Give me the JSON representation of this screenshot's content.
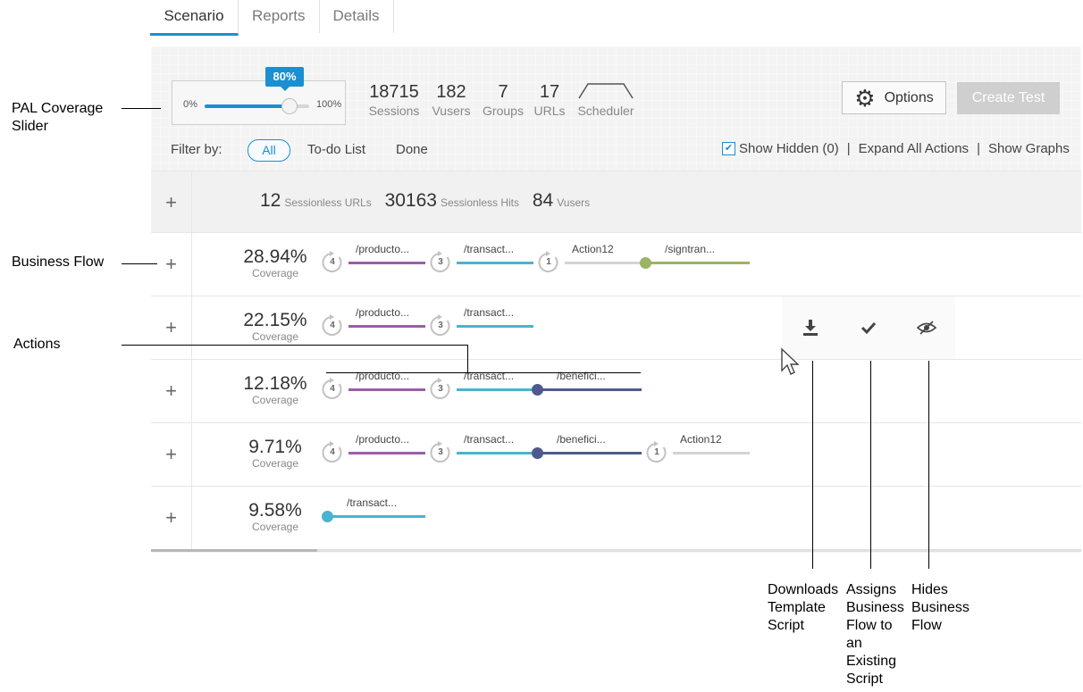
{
  "tabs": [
    {
      "label": "Scenario",
      "active": true
    },
    {
      "label": "Reports",
      "active": false
    },
    {
      "label": "Details",
      "active": false
    }
  ],
  "slider": {
    "min_label": "0%",
    "max_label": "100%",
    "value_label": "80%",
    "value": 0.8
  },
  "stats": [
    {
      "value": "18715",
      "label": "Sessions"
    },
    {
      "value": "182",
      "label": "Vusers"
    },
    {
      "value": "7",
      "label": "Groups"
    },
    {
      "value": "17",
      "label": "URLs"
    }
  ],
  "scheduler_label": "Scheduler",
  "options_label": "Options",
  "create_test_label": "Create Test",
  "filter": {
    "label": "Filter by:",
    "all": "All",
    "todo": "To-do List",
    "done": "Done"
  },
  "links": {
    "show_hidden": "Show Hidden (0)",
    "expand_all": "Expand All Actions",
    "show_graphs": "Show Graphs",
    "separator": "|"
  },
  "summary": {
    "urls_value": "12",
    "urls_label": "Sessionless URLs",
    "hits_value": "30163",
    "hits_label": "Sessionless Hits",
    "vusers_value": "84",
    "vusers_label": "Vusers"
  },
  "coverage_label": "Coverage",
  "colors": {
    "purple": "#9a5fa8",
    "teal": "#4ab3d0",
    "gray": "#d3d3d3",
    "green": "#9cb364",
    "navy": "#4e5a8e",
    "accent": "#1a8fd1"
  },
  "flows": [
    {
      "coverage": "28.94%",
      "actions": [
        {
          "label": "/producto...",
          "count": "4",
          "color": "purple"
        },
        {
          "label": "/transact...",
          "count": "3",
          "color": "teal"
        },
        {
          "label": "Action12",
          "count": "1",
          "color": "gray"
        },
        {
          "label": "/signtran...",
          "count": "",
          "color": "green"
        }
      ]
    },
    {
      "coverage": "22.15%",
      "actions": [
        {
          "label": "/producto...",
          "count": "4",
          "color": "purple"
        },
        {
          "label": "/transact...",
          "count": "3",
          "color": "teal"
        }
      ]
    },
    {
      "coverage": "12.18%",
      "actions": [
        {
          "label": "/producto...",
          "count": "4",
          "color": "purple"
        },
        {
          "label": "/transact...",
          "count": "3",
          "color": "teal"
        },
        {
          "label": "/benefici...",
          "count": "",
          "color": "navy"
        }
      ]
    },
    {
      "coverage": "9.71%",
      "actions": [
        {
          "label": "/producto...",
          "count": "4",
          "color": "purple"
        },
        {
          "label": "/transact...",
          "count": "3",
          "color": "teal"
        },
        {
          "label": "/benefici...",
          "count": "",
          "color": "navy"
        },
        {
          "label": "Action12",
          "count": "1",
          "color": "gray"
        }
      ]
    },
    {
      "coverage": "9.58%",
      "actions": [
        {
          "label": "/transact...",
          "count": "",
          "color": "teal"
        }
      ]
    }
  ],
  "hover_actions": [
    "download-template-icon",
    "assign-check-icon",
    "hide-eye-icon"
  ],
  "annotations": {
    "pal_slider": "PAL Coverage Slider",
    "business_flow": "Business Flow",
    "actions": "Actions",
    "downloads": "Downloads Template Script",
    "assigns": "Assigns Business Flow to an Existing Script",
    "hides": "Hides Business Flow"
  }
}
